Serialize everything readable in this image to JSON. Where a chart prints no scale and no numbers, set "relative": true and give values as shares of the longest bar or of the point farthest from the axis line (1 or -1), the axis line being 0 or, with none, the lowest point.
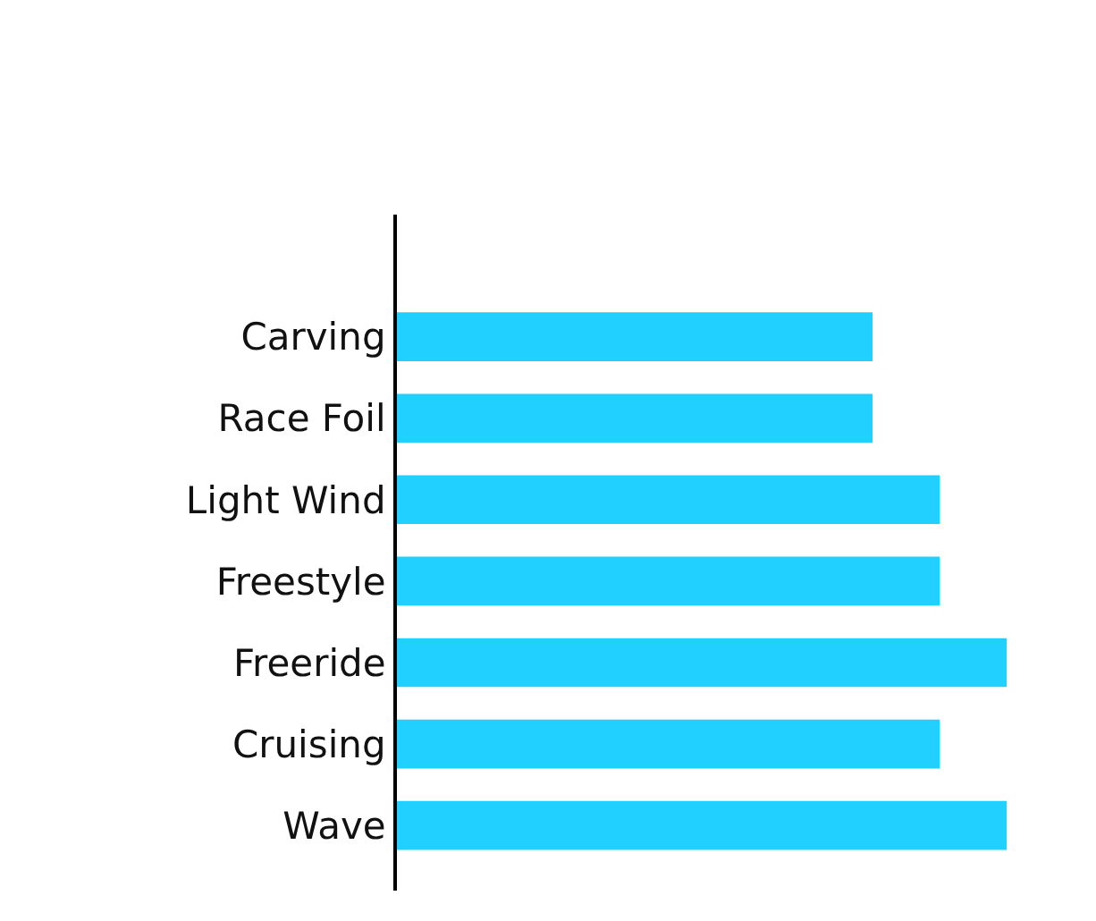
{
  "chart_data": {
    "type": "bar",
    "orientation": "horizontal",
    "relative": true,
    "categories": [
      "Carving",
      "Race Foil",
      "Light Wind",
      "Freestyle",
      "Freeride",
      "Cruising",
      "Wave"
    ],
    "values": [
      0.78,
      0.78,
      0.89,
      0.89,
      1,
      0.89,
      1
    ],
    "color": "#22d0ff"
  }
}
